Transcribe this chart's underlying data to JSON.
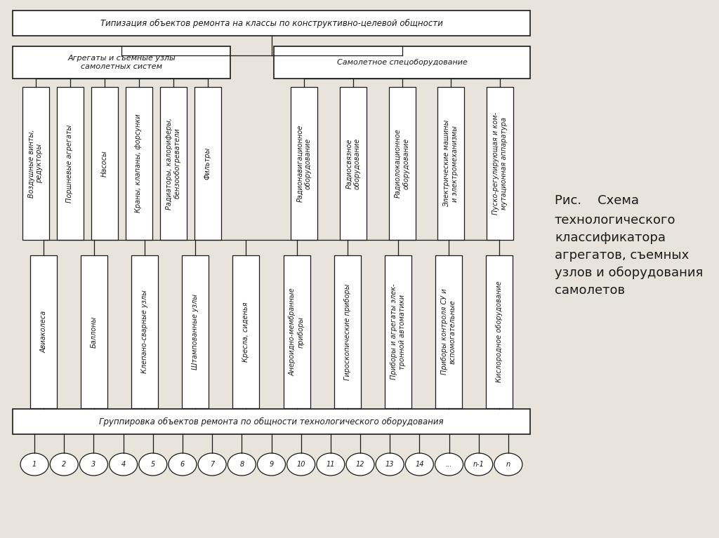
{
  "title_top": "Типизация объектов ремонта на классы по конструктивно-целевой общности",
  "title_bottom": "Группировка объектов ремонта по общности технологического оборудования",
  "mid_left": "Агрегаты и съемные узлы\nсамолетных систем",
  "mid_right": "Самолетное спецоборудование",
  "top_columns": [
    "Воздушные винты,\nредукторы",
    "Поршневые агрегаты",
    "Насосы",
    "Краны, клапаны, форсунки",
    "Радиаторы, калориферы,\nбензообогреватели",
    "Фильтры",
    "Радионавигационное\nоборудование",
    "Радиосвязное\nоборудование",
    "Радиолокационное\nоборудование",
    "Электрические машины\nи электромеханизмы",
    "Пуско-регулирующая и ком-\nмутационная аппаратура"
  ],
  "bottom_columns": [
    "Авиаколеса",
    "Баллоны",
    "Клепано-сварные узлы",
    "Штампованные узлы",
    "Кресла, сиденья",
    "Анероидно-мембранные\nприборы",
    "Гироскопические приборы",
    "Приборы и агрегаты элек-\nтронной автоматики",
    "Приборы контроля СУ и\nвспомогательные",
    "Кислородное оборудование"
  ],
  "numbers": [
    "1",
    "2",
    "3",
    "4",
    "5",
    "6",
    "7",
    "8",
    "9",
    "10",
    "11",
    "12",
    "13",
    "14",
    "...",
    "n-1",
    "n"
  ],
  "caption_line1": "Рис.    Схема",
  "caption_rest": "технологического\nклассификатора\nагрегатов, съемных\nузлов и оборудования\nсамолетов",
  "bg_color": "#e8e4db",
  "box_color": "#ffffff",
  "line_color": "#1a1a1a",
  "font_size": 7.0,
  "title_font_size": 8.0,
  "caption_font_size": 13
}
